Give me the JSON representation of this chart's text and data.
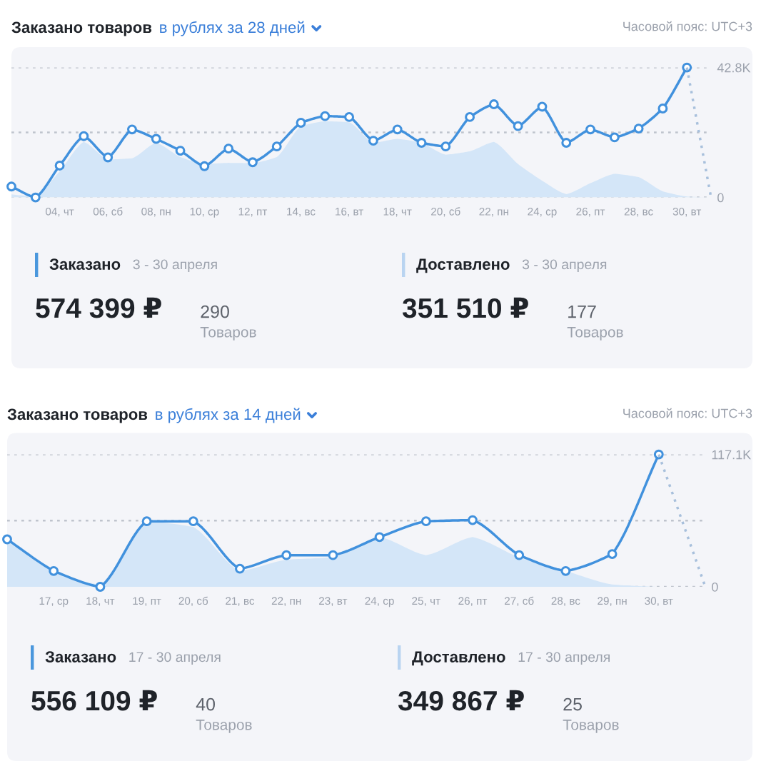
{
  "chart_data": [
    {
      "type": "line",
      "title": "Заказано товаров",
      "subtitle": "в рублях за 28 дней",
      "annotations": [
        "Часовой пояс: UTC+3"
      ],
      "categories": [
        null,
        null,
        "04, чт",
        null,
        "06, сб",
        null,
        "08, пн",
        null,
        "10, ср",
        null,
        "12, пт",
        null,
        "14, вс",
        null,
        "16, вт",
        null,
        "18, чт",
        null,
        "20, сб",
        null,
        "22, пн",
        null,
        "24, ср",
        null,
        "26, пт",
        null,
        "28, вс",
        null,
        "30, вт",
        null
      ],
      "series": [
        {
          "type": "area",
          "color": "#d4e6f8",
          "values": [
            1.0,
            0.3,
            8.6,
            18.3,
            12.5,
            12.9,
            18.0,
            13.3,
            11.0,
            11.4,
            11.3,
            13.3,
            23.5,
            25.1,
            24.8,
            18.0,
            19.3,
            18.0,
            14.1,
            15.2,
            18.3,
            11.0,
            5.5,
            1.1,
            4.7,
            7.8,
            6.7,
            2.0,
            0.3,
            0
          ]
        },
        {
          "type": "line",
          "color": "#4191dd",
          "marker": "circle",
          "line_style": "solid",
          "values": [
            3.6,
            0,
            10.5,
            20.2,
            13.2,
            22.4,
            19.3,
            15.4,
            10.3,
            16.1,
            11.6,
            16.8,
            24.6,
            26.8,
            26.5,
            18.7,
            22.4,
            18.0,
            16.8,
            26.5,
            30.7,
            23.5,
            29.9,
            18.0,
            22.4,
            19.8,
            22.7,
            29.3,
            42.8,
            null
          ]
        },
        {
          "type": "line",
          "color": "#a8c0dc",
          "marker": "none",
          "line_style": "dotted",
          "values": [
            null,
            null,
            null,
            null,
            null,
            null,
            null,
            null,
            null,
            null,
            null,
            null,
            null,
            null,
            null,
            null,
            null,
            null,
            null,
            null,
            null,
            null,
            null,
            null,
            null,
            null,
            null,
            null,
            42.8,
            0
          ]
        }
      ],
      "ylim": [
        0,
        42.8
      ],
      "yticks": [
        0,
        {
          "value": 21.4,
          "label": null
        },
        {
          "value": 42.8,
          "label": "42.8K"
        }
      ],
      "grid": "y"
    },
    {
      "type": "other",
      "annotations": [
        "Заказано",
        "3 - 30 апреля",
        "574 399 ₽",
        "290",
        "Товаров",
        "Доставлено",
        "3 - 30 апреля",
        "351 510 ₽",
        "177",
        "Товаров"
      ]
    },
    {
      "type": "line",
      "title": "Заказано товаров",
      "subtitle": "в рублях за 14 дней",
      "annotations": [
        "Часовой пояс: UTC+3"
      ],
      "categories": [
        null,
        "17, ср",
        "18, чт",
        "19, пт",
        "20, сб",
        "21, вс",
        "22, пн",
        "23, вт",
        "24, ср",
        "25, чт",
        "26, пт",
        "27, сб",
        "28, вс",
        "29, пн",
        "30, вт",
        null
      ],
      "series": [
        {
          "type": "area",
          "color": "#d4e6f8",
          "values": [
            41,
            13,
            2,
            58,
            53,
            14,
            24,
            26,
            44,
            28,
            44,
            26,
            14,
            2,
            0,
            0
          ]
        },
        {
          "type": "line",
          "color": "#4191dd",
          "marker": "circle",
          "line_style": "solid",
          "values": [
            42,
            14,
            0,
            58,
            58,
            16,
            28,
            28,
            44,
            58,
            59,
            28,
            14,
            29,
            117.1,
            null
          ]
        },
        {
          "type": "line",
          "color": "#a8c0dc",
          "marker": "none",
          "line_style": "dotted",
          "values": [
            null,
            null,
            null,
            null,
            null,
            null,
            null,
            null,
            null,
            null,
            null,
            null,
            null,
            null,
            117.1,
            0
          ]
        }
      ],
      "ylim": [
        0,
        117.1
      ],
      "yticks": [
        0,
        {
          "value": 58.6,
          "label": null
        },
        {
          "value": 117.1,
          "label": "117.1K"
        }
      ],
      "grid": "y"
    },
    {
      "type": "other",
      "annotations": [
        "Заказано",
        "17 - 30 апреля",
        "556 109 ₽",
        "40",
        "Товаров",
        "Доставлено",
        "17 - 30 апреля",
        "349 867 ₽",
        "25",
        "Товаров"
      ]
    }
  ]
}
